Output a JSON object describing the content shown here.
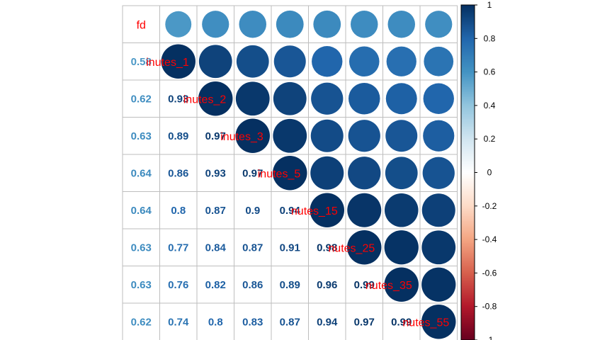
{
  "chart_data": {
    "type": "heatmap",
    "variables": [
      "fd",
      "minutes_1",
      "minutes_2",
      "minutes_3",
      "minutes_5",
      "minutes_15",
      "minutes_25",
      "minutes_35",
      "minutes_55"
    ],
    "matrix": [
      [
        1.0,
        0.58,
        0.62,
        0.63,
        0.64,
        0.64,
        0.63,
        0.63,
        0.62
      ],
      [
        0.58,
        1.0,
        0.93,
        0.89,
        0.86,
        0.8,
        0.77,
        0.76,
        0.74
      ],
      [
        0.62,
        0.93,
        1.0,
        0.97,
        0.93,
        0.87,
        0.84,
        0.82,
        0.8
      ],
      [
        0.63,
        0.89,
        0.97,
        1.0,
        0.97,
        0.9,
        0.87,
        0.86,
        0.83
      ],
      [
        0.64,
        0.86,
        0.93,
        0.97,
        1.0,
        0.94,
        0.91,
        0.89,
        0.87
      ],
      [
        0.64,
        0.8,
        0.87,
        0.9,
        0.94,
        1.0,
        0.98,
        0.96,
        0.94
      ],
      [
        0.63,
        0.77,
        0.84,
        0.87,
        0.91,
        0.98,
        1.0,
        0.99,
        0.97
      ],
      [
        0.63,
        0.76,
        0.82,
        0.86,
        0.89,
        0.96,
        0.99,
        1.0,
        0.99
      ],
      [
        0.62,
        0.74,
        0.8,
        0.83,
        0.87,
        0.94,
        0.97,
        0.99,
        1.0
      ]
    ],
    "lower_labels": [
      [],
      [
        "0.58"
      ],
      [
        "0.62",
        "0.93"
      ],
      [
        "0.63",
        "0.89",
        "0.97"
      ],
      [
        "0.64",
        "0.86",
        "0.93",
        "0.97"
      ],
      [
        "0.64",
        "0.8",
        "0.87",
        "0.9",
        "0.94"
      ],
      [
        "0.63",
        "0.77",
        "0.84",
        "0.87",
        "0.91",
        "0.98"
      ],
      [
        "0.63",
        "0.76",
        "0.82",
        "0.86",
        "0.89",
        "0.96",
        "0.99"
      ],
      [
        "0.62",
        "0.74",
        "0.8",
        "0.83",
        "0.87",
        "0.94",
        "0.97",
        "0.99"
      ]
    ],
    "diagonal_visible_text": [
      "fd",
      "inutes_1",
      "inutes_2",
      "inutes_3",
      "inutes_5",
      "nutes_15",
      "nutes_25",
      "nutes_35",
      "nutes_55"
    ],
    "upper_glyph": "circle",
    "lower_glyph": "number",
    "color_scale": {
      "min": -1,
      "max": 1,
      "colors": [
        "#67001f",
        "#b2182b",
        "#d6604d",
        "#f4a582",
        "#fddbc7",
        "#ffffff",
        "#d1e5f0",
        "#92c5de",
        "#4393c3",
        "#2166ac",
        "#053061"
      ],
      "ticks": [
        "1",
        "0.8",
        "0.6",
        "0.4",
        "0.2",
        "0",
        "-0.2",
        "-0.4",
        "-0.6",
        "-0.8",
        "-1"
      ]
    },
    "label_color": "#ff0000",
    "grid": true,
    "legend": "colorbar-right"
  }
}
